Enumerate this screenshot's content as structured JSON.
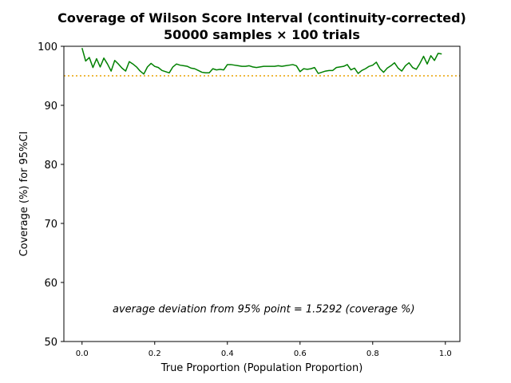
{
  "chart_data": {
    "type": "line",
    "title_line1": "Coverage of Wilson Score Interval (continuity-corrected)",
    "title_line2": "50000 samples × 100 trials",
    "xlabel": "True Proportion (Population Proportion)",
    "ylabel": "Coverage (%) for 95%CI",
    "xlim": [
      -0.05,
      1.04
    ],
    "ylim": [
      50,
      100
    ],
    "xticks": [
      0.0,
      0.2,
      0.4,
      0.6,
      0.8,
      1.0
    ],
    "xtick_labels": [
      "0.0",
      "0.2",
      "0.4",
      "0.6",
      "0.8",
      "1.0"
    ],
    "yticks": [
      50,
      60,
      70,
      80,
      90,
      100
    ],
    "ytick_labels": [
      "50",
      "60",
      "70",
      "80",
      "90",
      "100"
    ],
    "grid": false,
    "reference_line": {
      "y": 95,
      "color": "#e8a200",
      "style": "dotted"
    },
    "annotation": {
      "text": "average deviation from 95% point = 1.5292 (coverage %)",
      "x": 0.5,
      "y": 55.5
    },
    "series": [
      {
        "color": "#008000",
        "x": [
          0.0,
          0.01,
          0.02,
          0.03,
          0.04,
          0.05,
          0.06,
          0.07,
          0.08,
          0.09,
          0.1,
          0.11,
          0.12,
          0.13,
          0.14,
          0.15,
          0.16,
          0.17,
          0.18,
          0.19,
          0.2,
          0.21,
          0.22,
          0.23,
          0.24,
          0.25,
          0.26,
          0.27,
          0.28,
          0.29,
          0.3,
          0.31,
          0.32,
          0.33,
          0.34,
          0.35,
          0.36,
          0.37,
          0.38,
          0.39,
          0.4,
          0.41,
          0.42,
          0.43,
          0.44,
          0.45,
          0.46,
          0.47,
          0.48,
          0.49,
          0.5,
          0.51,
          0.52,
          0.53,
          0.54,
          0.55,
          0.56,
          0.57,
          0.58,
          0.59,
          0.6,
          0.61,
          0.62,
          0.63,
          0.64,
          0.65,
          0.66,
          0.67,
          0.68,
          0.69,
          0.7,
          0.71,
          0.72,
          0.73,
          0.74,
          0.75,
          0.76,
          0.77,
          0.78,
          0.79,
          0.8,
          0.81,
          0.82,
          0.83,
          0.84,
          0.85,
          0.86,
          0.87,
          0.88,
          0.89,
          0.9,
          0.91,
          0.92,
          0.93,
          0.94,
          0.95,
          0.96,
          0.97,
          0.98,
          0.99
        ],
        "y": [
          99.7,
          97.5,
          98.1,
          96.4,
          97.9,
          96.5,
          98.0,
          97.0,
          95.8,
          97.6,
          97.0,
          96.3,
          95.8,
          97.4,
          97.0,
          96.5,
          95.8,
          95.3,
          96.5,
          97.1,
          96.6,
          96.4,
          95.9,
          95.7,
          95.5,
          96.5,
          97.0,
          96.8,
          96.7,
          96.6,
          96.3,
          96.2,
          95.9,
          95.6,
          95.5,
          95.5,
          96.2,
          96.0,
          96.1,
          96.0,
          96.9,
          96.9,
          96.8,
          96.7,
          96.6,
          96.6,
          96.7,
          96.5,
          96.4,
          96.5,
          96.6,
          96.6,
          96.6,
          96.6,
          96.7,
          96.6,
          96.7,
          96.8,
          96.9,
          96.7,
          95.7,
          96.2,
          96.1,
          96.2,
          96.4,
          95.4,
          95.6,
          95.8,
          95.9,
          95.9,
          96.4,
          96.5,
          96.6,
          96.9,
          96.0,
          96.3,
          95.4,
          95.9,
          96.2,
          96.6,
          96.8,
          97.3,
          96.2,
          95.6,
          96.3,
          96.7,
          97.2,
          96.3,
          95.8,
          96.7,
          97.2,
          96.4,
          96.1,
          97.1,
          98.3,
          97.0,
          98.4,
          97.6,
          98.8,
          98.7
        ]
      }
    ]
  }
}
